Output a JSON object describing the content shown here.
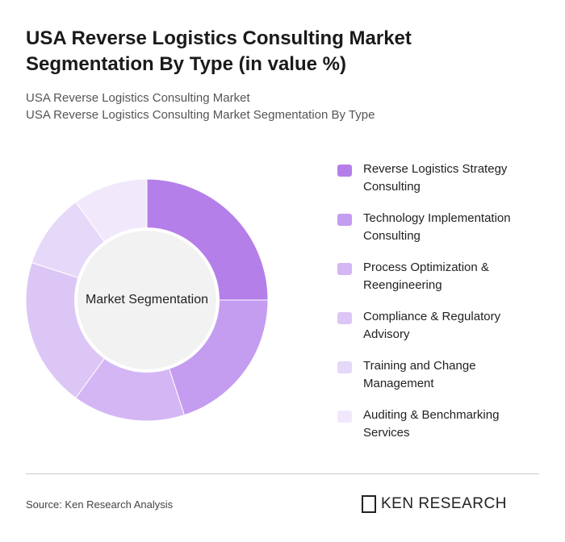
{
  "chart_data": {
    "type": "donut",
    "title": "USA Reverse Logistics Consulting Market Segmentation By Type (in value %)",
    "subtitle": [
      "USA Reverse Logistics Consulting Market",
      "USA Reverse Logistics Consulting Market Segmentation By Type"
    ],
    "center_label": "Market Segmentation",
    "categories": [
      "Reverse Logistics Strategy Consulting",
      "Technology Implementation Consulting",
      "Process Optimization & Reengineering",
      "Compliance & Regulatory Advisory",
      "Training and Change Management",
      "Auditing & Benchmarking Services"
    ],
    "values": [
      25,
      20,
      15,
      20,
      10,
      10
    ],
    "colors": [
      "#b57fea",
      "#c49cf0",
      "#d4b6f4",
      "#dcc6f6",
      "#e6d8f8",
      "#f1e9fb"
    ],
    "legend": "right",
    "source": "Source: Ken Research Analysis",
    "logo": "KEN RESEARCH"
  }
}
